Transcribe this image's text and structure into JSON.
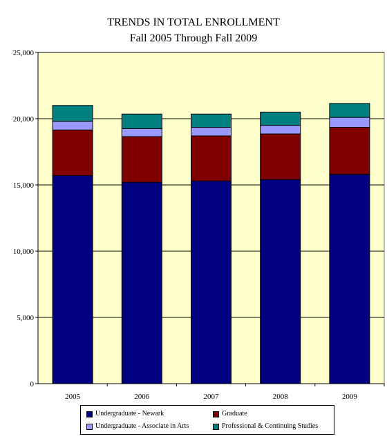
{
  "title_line1": "TRENDS IN TOTAL ENROLLMENT",
  "title_line2": "Fall 2005 Through Fall 2009",
  "chart_data": {
    "type": "stacked-bar",
    "categories": [
      "2005",
      "2006",
      "2007",
      "2008",
      "2009"
    ],
    "series": [
      {
        "name": "Undergraduate - Newark",
        "color": "#000080",
        "values": [
          15700,
          15200,
          15300,
          15400,
          15800
        ]
      },
      {
        "name": "Graduate",
        "color": "#800000",
        "values": [
          3450,
          3450,
          3400,
          3450,
          3550
        ]
      },
      {
        "name": "Undergraduate - Associate in Arts",
        "color": "#9999ff",
        "values": [
          650,
          600,
          650,
          650,
          750
        ]
      },
      {
        "name": "Professional & Continuing Studies",
        "color": "#008080",
        "values": [
          1200,
          1100,
          1000,
          1000,
          1050
        ]
      }
    ],
    "ylim": [
      0,
      25000
    ],
    "yticks": [
      0,
      5000,
      10000,
      15000,
      20000,
      25000
    ],
    "ytick_labels": [
      "0",
      "5,000",
      "10,000",
      "15,000",
      "20,000",
      "25,000"
    ],
    "grid": true,
    "plot_background": "#ffffcc",
    "legend_position": "bottom"
  }
}
